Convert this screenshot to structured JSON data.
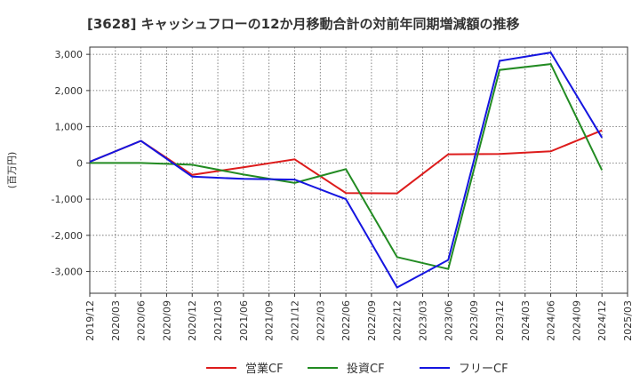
{
  "title": "[3628]  キャッシュフローの12か月移動合計の対前年同期増減額の推移",
  "chart_data": {
    "type": "line",
    "title": "[3628]  キャッシュフローの12か月移動合計の対前年同期増減額の推移",
    "ylabel": "(百万円)",
    "xlabel": "",
    "x": [
      "2019/12",
      "2020/03",
      "2020/06",
      "2020/09",
      "2020/12",
      "2021/03",
      "2021/06",
      "2021/09",
      "2021/12",
      "2022/03",
      "2022/06",
      "2022/09",
      "2022/12",
      "2023/03",
      "2023/06",
      "2023/09",
      "2023/12",
      "2024/03",
      "2024/06",
      "2024/09",
      "2024/12",
      "2025/03"
    ],
    "y_ticks": [
      3000,
      2000,
      1000,
      0,
      -1000,
      -2000,
      -3000
    ],
    "y_tick_labels": [
      "3,000",
      "2,000",
      "1,000",
      "0",
      "-1,000",
      "-2,000",
      "-3,000"
    ],
    "ylim": [
      -3600,
      3200
    ],
    "grid": true,
    "legend_position": "bottom",
    "series": [
      {
        "name": "営業CF",
        "color": "#dd1c1c",
        "points": [
          {
            "x": "2019/12",
            "y": 30
          },
          {
            "x": "2020/06",
            "y": 610
          },
          {
            "x": "2020/12",
            "y": -330
          },
          {
            "x": "2021/06",
            "y": -120
          },
          {
            "x": "2021/12",
            "y": 100
          },
          {
            "x": "2022/06",
            "y": -830
          },
          {
            "x": "2022/12",
            "y": -840
          },
          {
            "x": "2023/06",
            "y": 240
          },
          {
            "x": "2023/12",
            "y": 250
          },
          {
            "x": "2024/06",
            "y": 320
          },
          {
            "x": "2024/12",
            "y": 900
          }
        ]
      },
      {
        "name": "投資CF",
        "color": "#228b22",
        "points": [
          {
            "x": "2019/12",
            "y": 0
          },
          {
            "x": "2020/06",
            "y": 0
          },
          {
            "x": "2020/12",
            "y": -50
          },
          {
            "x": "2021/06",
            "y": -320
          },
          {
            "x": "2021/12",
            "y": -550
          },
          {
            "x": "2022/06",
            "y": -170
          },
          {
            "x": "2022/12",
            "y": -2600
          },
          {
            "x": "2023/06",
            "y": -2930
          },
          {
            "x": "2023/12",
            "y": 2570
          },
          {
            "x": "2024/06",
            "y": 2730
          },
          {
            "x": "2024/12",
            "y": -200
          }
        ]
      },
      {
        "name": "フリーCF",
        "color": "#1515e0",
        "points": [
          {
            "x": "2019/12",
            "y": 30
          },
          {
            "x": "2020/06",
            "y": 610
          },
          {
            "x": "2020/12",
            "y": -380
          },
          {
            "x": "2021/06",
            "y": -440
          },
          {
            "x": "2021/12",
            "y": -460
          },
          {
            "x": "2022/06",
            "y": -1000
          },
          {
            "x": "2022/12",
            "y": -3440
          },
          {
            "x": "2023/06",
            "y": -2680
          },
          {
            "x": "2023/12",
            "y": 2820
          },
          {
            "x": "2024/06",
            "y": 3050
          },
          {
            "x": "2024/12",
            "y": 700
          }
        ]
      }
    ]
  }
}
